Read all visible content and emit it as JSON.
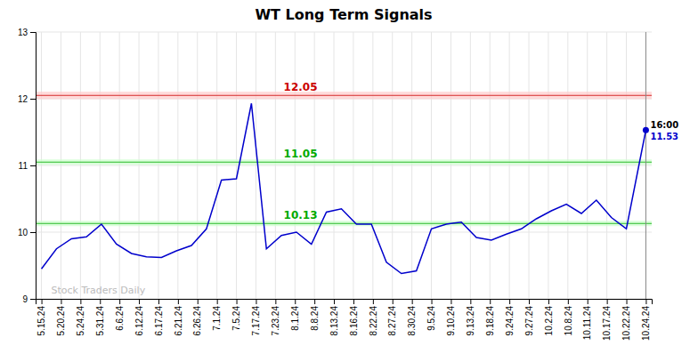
{
  "chart_data": {
    "type": "line",
    "title": "WT Long Term Signals",
    "x": [
      0,
      0.7692,
      1.5385,
      2.3077,
      3.0769,
      3.8462,
      4.6154,
      5.3846,
      6.1538,
      6.9231,
      7.6923,
      8.4615,
      9.2308,
      10,
      10.7692,
      11.5385,
      12.3077,
      13.0769,
      13.8462,
      14.6154,
      15.3846,
      16.1538,
      16.9231,
      17.6923,
      18.4615,
      19.2308,
      20,
      20.7692,
      21.5385,
      22.3077,
      23.0769,
      23.8462,
      24.6154,
      25.3846,
      26.1538,
      26.9231,
      27.6923,
      28.4615,
      29.2308,
      30,
      31
    ],
    "values": [
      9.45,
      9.75,
      9.9,
      9.93,
      10.12,
      9.82,
      9.68,
      9.63,
      9.62,
      9.72,
      9.8,
      10.05,
      10.78,
      10.8,
      11.93,
      9.75,
      9.95,
      10.0,
      9.82,
      10.3,
      10.35,
      10.12,
      10.12,
      9.55,
      9.38,
      9.42,
      10.05,
      10.12,
      10.15,
      9.92,
      9.88,
      9.97,
      10.05,
      10.2,
      10.32,
      10.42,
      10.28,
      10.48,
      10.22,
      10.05,
      11.53
    ],
    "color": "#0000cc",
    "xlim": [
      -0.3,
      31.3
    ],
    "xticks": [
      {
        "value": 0,
        "label": "5.15.24"
      },
      {
        "value": 1,
        "label": "5.20.24"
      },
      {
        "value": 2,
        "label": "5.24.24"
      },
      {
        "value": 3,
        "label": "5.31.24"
      },
      {
        "value": 4,
        "label": "6.6.24"
      },
      {
        "value": 5,
        "label": "6.12.24"
      },
      {
        "value": 6,
        "label": "6.17.24"
      },
      {
        "value": 7,
        "label": "6.21.24"
      },
      {
        "value": 8,
        "label": "6.26.24"
      },
      {
        "value": 9,
        "label": "7.1.24"
      },
      {
        "value": 10,
        "label": "7.5.24"
      },
      {
        "value": 11,
        "label": "7.17.24"
      },
      {
        "value": 12,
        "label": "7.23.24"
      },
      {
        "value": 13,
        "label": "8.1.24"
      },
      {
        "value": 14,
        "label": "8.8.24"
      },
      {
        "value": 15,
        "label": "8.13.24"
      },
      {
        "value": 16,
        "label": "8.16.24"
      },
      {
        "value": 17,
        "label": "8.22.24"
      },
      {
        "value": 18,
        "label": "8.27.24"
      },
      {
        "value": 19,
        "label": "8.30.24"
      },
      {
        "value": 20,
        "label": "9.5.24"
      },
      {
        "value": 21,
        "label": "9.10.24"
      },
      {
        "value": 22,
        "label": "9.13.24"
      },
      {
        "value": 23,
        "label": "9.18.24"
      },
      {
        "value": 24,
        "label": "9.24.24"
      },
      {
        "value": 25,
        "label": "9.27.24"
      },
      {
        "value": 26,
        "label": "10.2.24"
      },
      {
        "value": 27,
        "label": "10.8.24"
      },
      {
        "value": 28,
        "label": "10.11.24"
      },
      {
        "value": 29,
        "label": "10.17.24"
      },
      {
        "value": 30,
        "label": "10.22.24"
      },
      {
        "value": 31,
        "label": "10.24.24"
      }
    ],
    "ylim": [
      9,
      13
    ],
    "yticks": [
      9,
      10,
      11,
      12,
      13
    ],
    "grid": true,
    "reference_lines": [
      {
        "value": 12.05,
        "label": "12.05",
        "color": "#cc0000",
        "band_color": "#ffcccc"
      },
      {
        "value": 11.05,
        "label": "11.05",
        "color": "#00aa00",
        "band_color": "#ccffcc"
      },
      {
        "value": 10.13,
        "label": "10.13",
        "color": "#00aa00",
        "band_color": "#ccffcc"
      }
    ],
    "annotations": [
      {
        "text": "16:00",
        "x": 31,
        "y": 11.53
      },
      {
        "text": "11.53",
        "x": 31,
        "y": 11.53,
        "color": "#0000cc"
      },
      {
        "text": "Stock Traders Daily",
        "x": 0.5,
        "y": 9.08,
        "color": "#bbbbbb"
      }
    ]
  }
}
